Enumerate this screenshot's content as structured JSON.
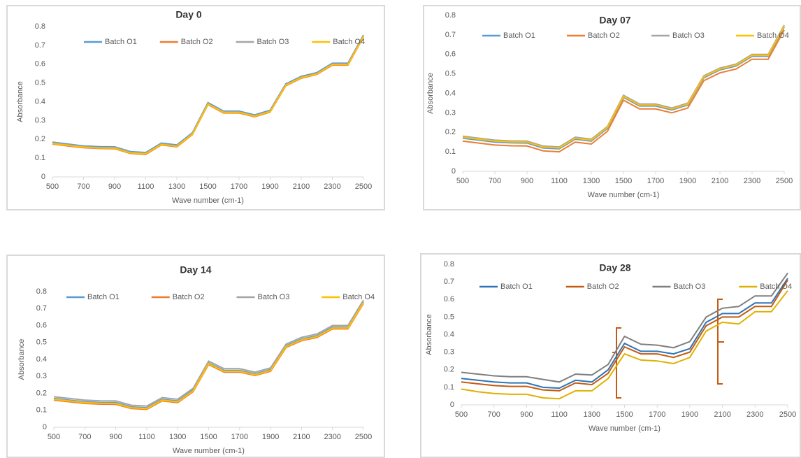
{
  "chart_data": [
    {
      "type": "line",
      "title": "Day 0",
      "x_label": "Wave number (cm-1)",
      "y_label": "Absorbance",
      "x": [
        500,
        600,
        700,
        800,
        900,
        1000,
        1100,
        1200,
        1300,
        1400,
        1500,
        1600,
        1700,
        1800,
        1900,
        2000,
        2100,
        2200,
        2300,
        2400,
        2500
      ],
      "xlim": [
        500,
        2500
      ],
      "xticks": [
        500,
        700,
        900,
        1100,
        1300,
        1500,
        1700,
        1900,
        2100,
        2300,
        2500
      ],
      "ylim": [
        0,
        0.8
      ],
      "yticks": [
        0,
        0.1,
        0.2,
        0.3,
        0.4,
        0.5,
        0.6,
        0.7,
        0.8
      ],
      "grid": false,
      "legend": "top",
      "series": [
        {
          "name": "Batch O1",
          "color": "#5b9bd5",
          "values": [
            0.185,
            0.175,
            0.165,
            0.161,
            0.16,
            0.135,
            0.13,
            0.18,
            0.17,
            0.235,
            0.395,
            0.35,
            0.35,
            0.33,
            0.355,
            0.495,
            0.535,
            0.555,
            0.605,
            0.605,
            0.755
          ]
        },
        {
          "name": "Batch O2",
          "color": "#ed7d31",
          "values": [
            0.175,
            0.165,
            0.155,
            0.151,
            0.15,
            0.125,
            0.12,
            0.17,
            0.16,
            0.225,
            0.385,
            0.34,
            0.34,
            0.32,
            0.345,
            0.485,
            0.525,
            0.545,
            0.595,
            0.595,
            0.745
          ]
        },
        {
          "name": "Batch O3",
          "color": "#a5a5a5",
          "values": [
            0.18,
            0.17,
            0.16,
            0.156,
            0.155,
            0.13,
            0.125,
            0.175,
            0.165,
            0.23,
            0.39,
            0.345,
            0.345,
            0.325,
            0.35,
            0.49,
            0.53,
            0.55,
            0.6,
            0.6,
            0.75
          ]
        },
        {
          "name": "Batch O4",
          "color": "#ffc000",
          "values": [
            0.178,
            0.168,
            0.158,
            0.154,
            0.153,
            0.128,
            0.123,
            0.173,
            0.163,
            0.228,
            0.388,
            0.343,
            0.343,
            0.323,
            0.348,
            0.488,
            0.528,
            0.548,
            0.598,
            0.598,
            0.748
          ]
        }
      ]
    },
    {
      "type": "line",
      "title": "Day 07",
      "x_label": "Wave number (cm-1)",
      "y_label": "Absorbance",
      "x": [
        500,
        600,
        700,
        800,
        900,
        1000,
        1100,
        1200,
        1300,
        1400,
        1500,
        1600,
        1700,
        1800,
        1900,
        2000,
        2100,
        2200,
        2300,
        2400,
        2500
      ],
      "xlim": [
        500,
        2500
      ],
      "xticks": [
        500,
        700,
        900,
        1100,
        1300,
        1500,
        1700,
        1900,
        2100,
        2300,
        2500
      ],
      "ylim": [
        0,
        0.8
      ],
      "yticks": [
        0,
        0.1,
        0.2,
        0.3,
        0.4,
        0.5,
        0.6,
        0.7,
        0.8
      ],
      "grid": false,
      "legend": "top",
      "series": [
        {
          "name": "Batch O1",
          "color": "#5b9bd5",
          "values": [
            0.17,
            0.16,
            0.15,
            0.146,
            0.145,
            0.12,
            0.115,
            0.165,
            0.155,
            0.22,
            0.38,
            0.335,
            0.335,
            0.315,
            0.34,
            0.48,
            0.52,
            0.54,
            0.59,
            0.59,
            0.74
          ]
        },
        {
          "name": "Batch O2",
          "color": "#ed7d31",
          "values": [
            0.155,
            0.145,
            0.135,
            0.131,
            0.13,
            0.105,
            0.1,
            0.15,
            0.14,
            0.205,
            0.365,
            0.32,
            0.32,
            0.3,
            0.325,
            0.465,
            0.505,
            0.525,
            0.575,
            0.575,
            0.725
          ]
        },
        {
          "name": "Batch O3",
          "color": "#a5a5a5",
          "values": [
            0.18,
            0.17,
            0.16,
            0.156,
            0.155,
            0.13,
            0.125,
            0.175,
            0.165,
            0.23,
            0.39,
            0.345,
            0.345,
            0.325,
            0.35,
            0.49,
            0.53,
            0.55,
            0.6,
            0.6,
            0.75
          ]
        },
        {
          "name": "Batch O4",
          "color": "#ffc000",
          "values": [
            0.175,
            0.165,
            0.155,
            0.151,
            0.15,
            0.125,
            0.12,
            0.17,
            0.16,
            0.225,
            0.385,
            0.34,
            0.34,
            0.32,
            0.345,
            0.485,
            0.525,
            0.545,
            0.595,
            0.595,
            0.745
          ]
        }
      ]
    },
    {
      "type": "line",
      "title": "Day 14",
      "x_label": "Wave number (cm-1)",
      "y_label": "Absorbance",
      "x": [
        500,
        600,
        700,
        800,
        900,
        1000,
        1100,
        1200,
        1300,
        1400,
        1500,
        1600,
        1700,
        1800,
        1900,
        2000,
        2100,
        2200,
        2300,
        2400,
        2500
      ],
      "xlim": [
        500,
        2500
      ],
      "xticks": [
        500,
        700,
        900,
        1100,
        1300,
        1500,
        1700,
        1900,
        2100,
        2300,
        2500
      ],
      "ylim": [
        0,
        0.8
      ],
      "yticks": [
        0,
        0.1,
        0.2,
        0.3,
        0.4,
        0.5,
        0.6,
        0.7,
        0.8
      ],
      "grid": false,
      "legend": "top",
      "series": [
        {
          "name": "Batch O1",
          "color": "#5b9bd5",
          "values": [
            0.17,
            0.16,
            0.15,
            0.146,
            0.145,
            0.12,
            0.115,
            0.165,
            0.155,
            0.22,
            0.38,
            0.335,
            0.335,
            0.315,
            0.34,
            0.48,
            0.52,
            0.54,
            0.59,
            0.59,
            0.74
          ]
        },
        {
          "name": "Batch O2",
          "color": "#ed7d31",
          "values": [
            0.16,
            0.15,
            0.14,
            0.136,
            0.135,
            0.11,
            0.105,
            0.155,
            0.145,
            0.21,
            0.37,
            0.325,
            0.325,
            0.305,
            0.33,
            0.47,
            0.51,
            0.53,
            0.58,
            0.58,
            0.73
          ]
        },
        {
          "name": "Batch O3",
          "color": "#a5a5a5",
          "values": [
            0.18,
            0.17,
            0.16,
            0.156,
            0.155,
            0.13,
            0.125,
            0.175,
            0.165,
            0.23,
            0.39,
            0.345,
            0.345,
            0.325,
            0.35,
            0.49,
            0.53,
            0.55,
            0.6,
            0.6,
            0.75
          ]
        },
        {
          "name": "Batch O4",
          "color": "#ffc000",
          "values": [
            0.165,
            0.155,
            0.145,
            0.141,
            0.14,
            0.115,
            0.11,
            0.16,
            0.15,
            0.215,
            0.375,
            0.33,
            0.33,
            0.31,
            0.335,
            0.475,
            0.515,
            0.535,
            0.585,
            0.585,
            0.735
          ]
        }
      ]
    },
    {
      "type": "line",
      "title": "Day 28",
      "x_label": "Wave number (cm-1)",
      "y_label": "Absorbance",
      "x": [
        500,
        600,
        700,
        800,
        900,
        1000,
        1100,
        1200,
        1300,
        1400,
        1500,
        1600,
        1700,
        1800,
        1900,
        2000,
        2100,
        2200,
        2300,
        2400,
        2500
      ],
      "xlim": [
        500,
        2500
      ],
      "xticks": [
        500,
        700,
        900,
        1100,
        1300,
        1500,
        1700,
        1900,
        2100,
        2300,
        2500
      ],
      "ylim": [
        0,
        0.8
      ],
      "yticks": [
        0,
        0.1,
        0.2,
        0.3,
        0.4,
        0.5,
        0.6,
        0.7,
        0.8
      ],
      "grid": false,
      "legend": "top",
      "series": [
        {
          "name": "Batch O1",
          "color": "#2e75b6",
          "values": [
            0.15,
            0.14,
            0.13,
            0.125,
            0.125,
            0.1,
            0.095,
            0.14,
            0.13,
            0.2,
            0.35,
            0.305,
            0.305,
            0.29,
            0.32,
            0.47,
            0.52,
            0.52,
            0.58,
            0.58,
            0.72
          ]
        },
        {
          "name": "Batch O2",
          "color": "#c55a11",
          "values": [
            0.13,
            0.12,
            0.11,
            0.105,
            0.105,
            0.085,
            0.08,
            0.125,
            0.115,
            0.18,
            0.33,
            0.29,
            0.29,
            0.27,
            0.3,
            0.45,
            0.5,
            0.5,
            0.56,
            0.56,
            0.71
          ]
        },
        {
          "name": "Batch O3",
          "color": "#7f7f7f",
          "values": [
            0.185,
            0.175,
            0.165,
            0.16,
            0.16,
            0.145,
            0.13,
            0.175,
            0.17,
            0.23,
            0.39,
            0.345,
            0.34,
            0.325,
            0.36,
            0.5,
            0.55,
            0.56,
            0.62,
            0.62,
            0.75
          ]
        },
        {
          "name": "Batch O4",
          "color": "#e0b000",
          "values": [
            0.09,
            0.075,
            0.065,
            0.06,
            0.06,
            0.04,
            0.035,
            0.08,
            0.08,
            0.15,
            0.29,
            0.255,
            0.25,
            0.235,
            0.27,
            0.42,
            0.47,
            0.46,
            0.53,
            0.53,
            0.65
          ]
        }
      ]
    }
  ]
}
